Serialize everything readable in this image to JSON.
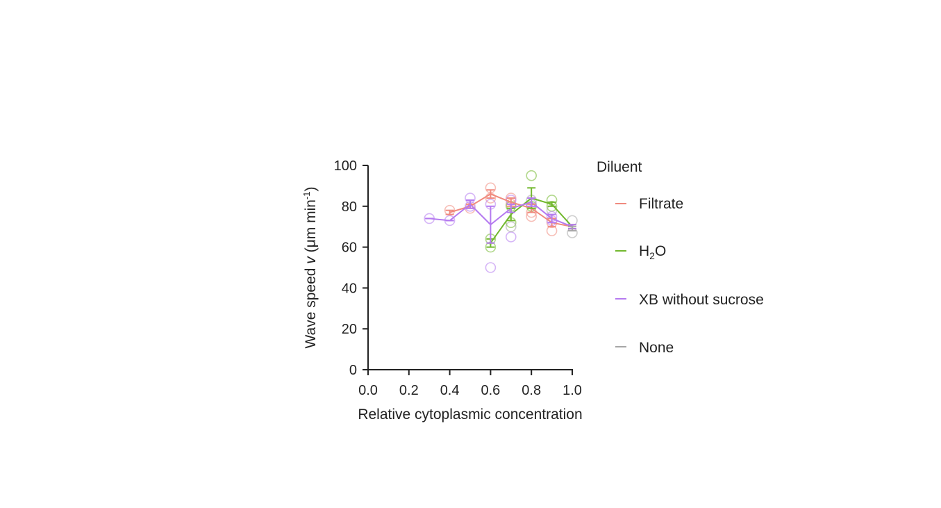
{
  "chart_data": {
    "type": "line",
    "xlabel": "Relative cytoplasmic concentration",
    "ylabel_main": "Wave speed ",
    "ylabel_var": "v",
    "ylabel_open": " (",
    "ylabel_mu": "μ",
    "ylabel_unit": "m min",
    "ylabel_sup": "-1",
    "ylabel_close": ")",
    "xlim": [
      0,
      1
    ],
    "ylim": [
      0,
      100
    ],
    "xticks": [
      "0.0",
      "0.2",
      "0.4",
      "0.6",
      "0.8",
      "1.0"
    ],
    "yticks": [
      "0",
      "20",
      "40",
      "60",
      "80",
      "100"
    ],
    "grid": false,
    "legend_title": "Diluent",
    "legend_placement": "right",
    "series": [
      {
        "name": "Filtrate",
        "color": "#f08a7e",
        "x": [
          0.4,
          0.5,
          0.6,
          0.7,
          0.8,
          0.9,
          1.0
        ],
        "mean": [
          77,
          80,
          86,
          82,
          79,
          72,
          70
        ],
        "err": [
          1,
          1,
          2,
          2,
          2,
          2,
          1
        ],
        "points": [
          [
            0.4,
            78
          ],
          [
            0.5,
            79
          ],
          [
            0.6,
            89
          ],
          [
            0.6,
            84
          ],
          [
            0.7,
            81
          ],
          [
            0.7,
            84
          ],
          [
            0.8,
            75
          ],
          [
            0.8,
            77
          ],
          [
            0.9,
            68
          ],
          [
            0.9,
            72
          ]
        ]
      },
      {
        "name": "H",
        "name_sub": "2",
        "name_tail": "O",
        "color": "#72b82e",
        "x": [
          0.6,
          0.7,
          0.8,
          0.9,
          1.0
        ],
        "mean": [
          62,
          76,
          84,
          81,
          70
        ],
        "err": [
          2,
          3,
          5,
          1,
          1
        ],
        "points": [
          [
            0.6,
            60
          ],
          [
            0.6,
            64
          ],
          [
            0.7,
            72
          ],
          [
            0.7,
            80
          ],
          [
            0.8,
            95
          ],
          [
            0.8,
            80
          ],
          [
            0.9,
            83
          ],
          [
            0.9,
            80
          ]
        ]
      },
      {
        "name": "XB without sucrose",
        "color": "#b57af0",
        "x": [
          0.3,
          0.4,
          0.5,
          0.6,
          0.7,
          0.8,
          0.9,
          1.0
        ],
        "mean": [
          74,
          73,
          81,
          71,
          79,
          82,
          74,
          70
        ],
        "err": [
          0,
          0,
          2,
          9,
          2,
          2,
          2,
          1
        ],
        "points": [
          [
            0.3,
            74
          ],
          [
            0.4,
            73
          ],
          [
            0.5,
            84
          ],
          [
            0.5,
            80
          ],
          [
            0.6,
            50
          ],
          [
            0.6,
            81
          ],
          [
            0.7,
            65
          ],
          [
            0.7,
            83
          ],
          [
            0.8,
            81
          ],
          [
            0.9,
            73
          ],
          [
            0.9,
            75
          ]
        ]
      },
      {
        "name": "None",
        "color": "#a6a6a6",
        "x": [
          1.0
        ],
        "mean": [
          69
        ],
        "err": [
          1
        ],
        "points": [
          [
            0.7,
            70
          ],
          [
            0.8,
            83
          ],
          [
            0.9,
            78
          ],
          [
            1.0,
            73
          ],
          [
            1.0,
            67
          ]
        ]
      }
    ]
  }
}
